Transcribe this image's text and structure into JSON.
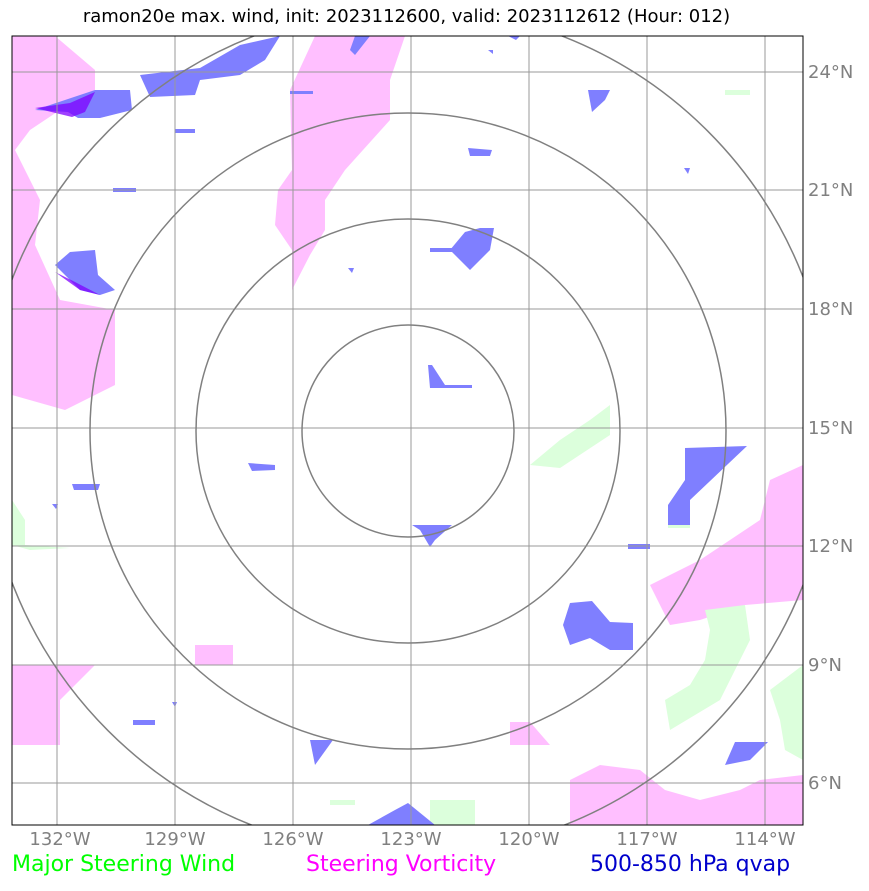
{
  "title": "ramon20e max. wind, init: 2023112600, valid: 2023112612 (Hour: 012)",
  "map": {
    "center": {
      "lon": -123,
      "lat": 15
    },
    "lon_labels": [
      "132°W",
      "129°W",
      "126°W",
      "123°W",
      "120°W",
      "117°W",
      "114°W"
    ],
    "lat_labels": [
      "24°N",
      "21°N",
      "18°N",
      "15°N",
      "12°N",
      "9°N",
      "6°N"
    ],
    "range_rings": 4
  },
  "legend": {
    "wind": {
      "label": "Major Steering Wind",
      "color": "#00ff00"
    },
    "vorticity": {
      "label": "Steering Vorticity",
      "color": "#ff00ff"
    },
    "qvap": {
      "label": "500-850 hPa qvap",
      "color": "#0000cc"
    }
  },
  "colors": {
    "vorticity_fill": "#ffbfff",
    "qvap_fill": "#7f7fff",
    "wind_fill": "#dcffdc",
    "grid": "#999999",
    "ring": "#808080",
    "tick_label": "#808080"
  }
}
